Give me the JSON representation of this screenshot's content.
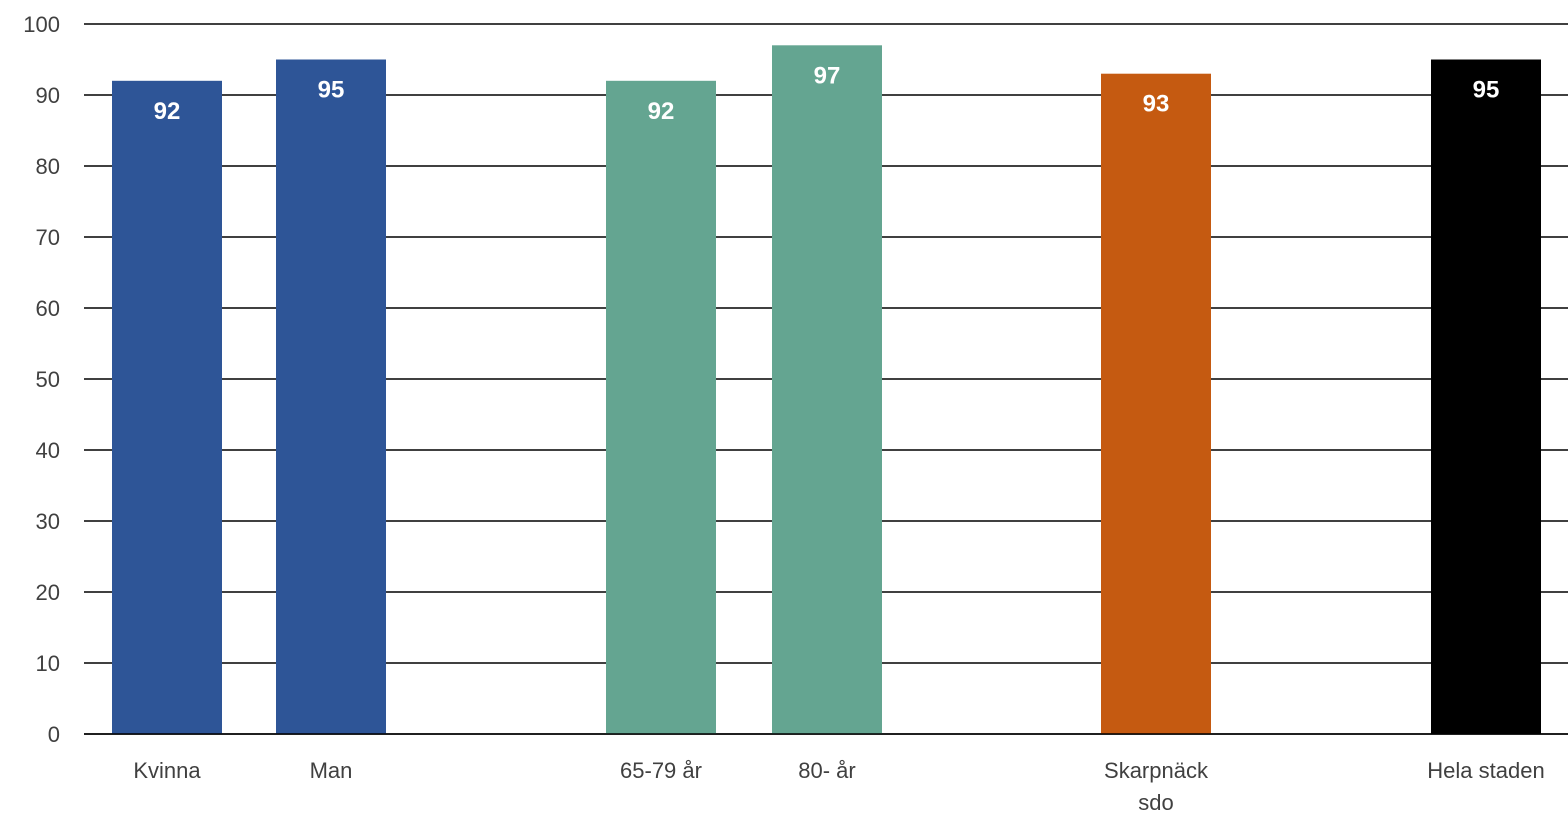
{
  "chart_data": {
    "type": "bar",
    "title": "",
    "xlabel": "",
    "ylabel": "",
    "ylim": [
      0,
      100
    ],
    "yticks": [
      0,
      10,
      20,
      30,
      40,
      50,
      60,
      70,
      80,
      90,
      100
    ],
    "grid": true,
    "legend": "none",
    "categories": [
      "Kvinna",
      "Man",
      "65-79 år",
      "80- år",
      "Skarpnäck sdo",
      "Hela staden"
    ],
    "category_label_lines": [
      [
        "Kvinna"
      ],
      [
        "Man"
      ],
      [
        "65-79 år"
      ],
      [
        "80- år"
      ],
      [
        "Skarpnäck",
        "sdo"
      ],
      [
        "Hela staden"
      ]
    ],
    "values": [
      92,
      95,
      92,
      97,
      93,
      95
    ],
    "data_labels": [
      "92",
      "95",
      "92",
      "97",
      "93",
      "95"
    ],
    "colors": [
      "#2e5597",
      "#2e5597",
      "#64a591",
      "#64a591",
      "#c55a11",
      "#000000"
    ]
  }
}
